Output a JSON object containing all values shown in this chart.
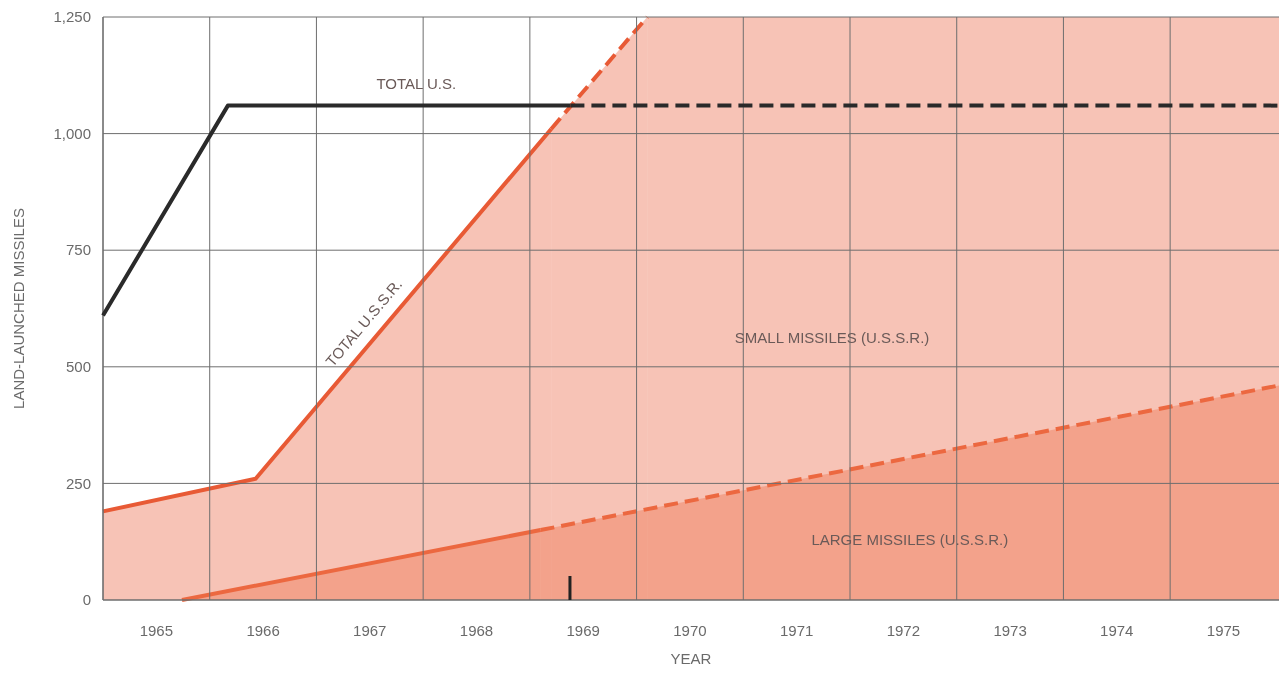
{
  "chart_data": {
    "type": "line",
    "xlabel": "YEAR",
    "ylabel": "LAND-LAUNCHED MISSILES",
    "xlim": [
      1964.5,
      1975.52
    ],
    "ylim": [
      0,
      1250
    ],
    "xticks": [
      {
        "value": 1964.5,
        "label": null
      },
      1965,
      {
        "value": 1965.5,
        "label": null
      },
      1966,
      {
        "value": 1966.5,
        "label": null
      },
      1967,
      {
        "value": 1967.5,
        "label": null
      },
      1968,
      {
        "value": 1968.5,
        "label": null
      },
      1969,
      {
        "value": 1969.5,
        "label": null
      },
      1970,
      {
        "value": 1970.5,
        "label": null
      },
      1971,
      {
        "value": 1971.5,
        "label": null
      },
      1972,
      {
        "value": 1972.5,
        "label": null
      },
      1973,
      {
        "value": 1973.5,
        "label": null
      },
      1974,
      {
        "value": 1974.5,
        "label": null
      },
      1975
    ],
    "yticks": [
      0,
      250,
      500,
      750,
      {
        "value": 1000,
        "label": "1,000"
      },
      {
        "value": 1250,
        "label": "1,250"
      }
    ],
    "grid": true,
    "series": [
      {
        "type": "area",
        "name": "TOTAL U.S.S.R.",
        "color": "#e85a35",
        "line_style": "solid",
        "x": [
          1964.5,
          1965.93,
          1968.7
        ],
        "values": [
          190,
          260,
          1010
        ]
      },
      {
        "type": "area",
        "color": "#e85a35",
        "line_style": "dashed",
        "x": [
          1968.7,
          1969.6
        ],
        "values": [
          1010,
          1250
        ]
      },
      {
        "type": "area",
        "color": "#ec6840",
        "line_style": "solid",
        "x": [
          1965.24,
          1968.6
        ],
        "values": [
          0,
          150
        ]
      },
      {
        "type": "area",
        "name": "LARGE MISSILES (U.S.S.R.)",
        "color": "#ec6840",
        "line_style": "dashed",
        "x": [
          1968.6,
          1975.52
        ],
        "values": [
          150,
          460
        ]
      },
      {
        "name": "TOTAL U.S.",
        "color": "#2a2a2a",
        "line_style": "solid",
        "x": [
          1964.5,
          1965.67,
          1968.88
        ],
        "values": [
          610,
          1060,
          1060
        ]
      },
      {
        "color": "#2a2a2a",
        "line_style": "dashed",
        "x": [
          1968.88,
          1975.52
        ],
        "values": [
          1060,
          1060
        ]
      }
    ],
    "bands": [
      {
        "axis": "x",
        "from": 1969.6,
        "to": 1975.52,
        "color": "#e85a35"
      }
    ],
    "annotations": [
      "SMALL MISSILES (U.S.S.R.)"
    ]
  }
}
